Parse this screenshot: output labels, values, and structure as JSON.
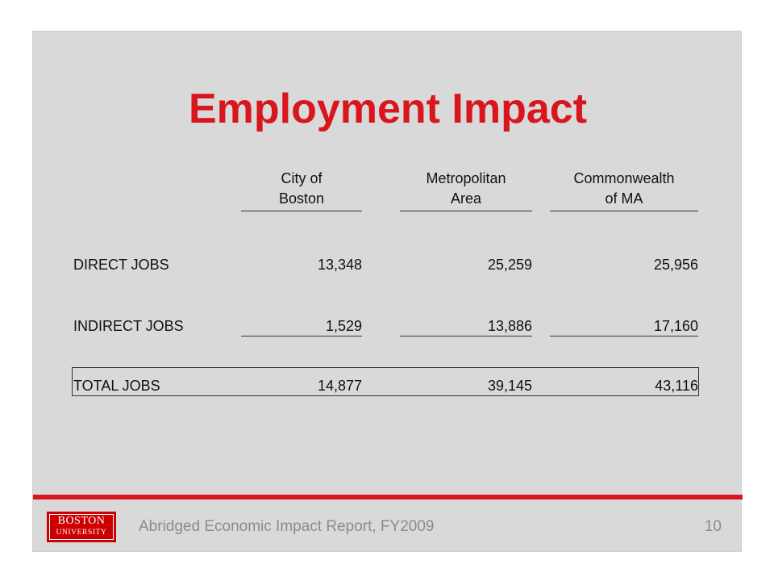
{
  "slide": {
    "title": "Employment Impact",
    "table": {
      "columns": [
        {
          "line1": "City of",
          "line2": "Boston"
        },
        {
          "line1": "Metropolitan",
          "line2": "Area"
        },
        {
          "line1": "Commonwealth",
          "line2": "of MA"
        }
      ],
      "rows": [
        {
          "label": "DIRECT JOBS",
          "values": [
            "13,348",
            "25,259",
            "25,956"
          ]
        },
        {
          "label": "INDIRECT JOBS",
          "values": [
            "1,529",
            "13,886",
            "17,160"
          ]
        },
        {
          "label": "TOTAL JOBS",
          "values": [
            "14,877",
            "39,145",
            "43,116"
          ]
        }
      ]
    },
    "footer": {
      "logo_line1": "BOSTON",
      "logo_line2": "UNIVERSITY",
      "text": "Abridged Economic Impact Report, FY2009",
      "page_number": "10"
    },
    "colors": {
      "accent": "#d9151d",
      "background": "#d9d9d9",
      "footer_text": "#8c8c8c"
    }
  }
}
